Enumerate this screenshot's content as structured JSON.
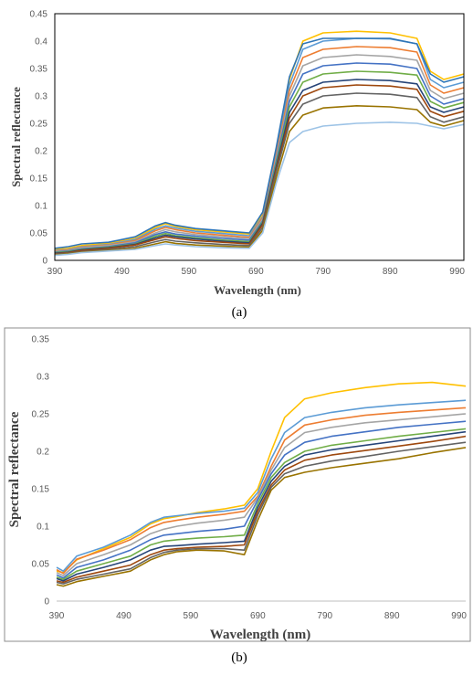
{
  "chart_data": [
    {
      "type": "line",
      "panel": "(a)",
      "xlabel": "Wavelength (nm)",
      "ylabel": "Spectral reflectance",
      "xlim": [
        390,
        1000
      ],
      "ylim": [
        0,
        0.45
      ],
      "xticks": [
        "390",
        "490",
        "590",
        "690",
        "790",
        "890",
        "990"
      ],
      "yticks": [
        "0",
        "0.05",
        "0.1",
        "0.15",
        "0.2",
        "0.25",
        "0.3",
        "0.35",
        "0.4",
        "0.45"
      ],
      "grid": false,
      "legend": "none",
      "x": [
        390,
        410,
        430,
        470,
        510,
        540,
        555,
        570,
        600,
        640,
        680,
        700,
        720,
        740,
        760,
        790,
        840,
        890,
        930,
        950,
        970,
        1000
      ],
      "series": [
        {
          "values": [
            0.02,
            0.022,
            0.027,
            0.031,
            0.04,
            0.06,
            0.067,
            0.062,
            0.056,
            0.052,
            0.048,
            0.085,
            0.2,
            0.33,
            0.4,
            0.415,
            0.418,
            0.415,
            0.405,
            0.345,
            0.33,
            0.34
          ]
        },
        {
          "values": [
            0.018,
            0.02,
            0.025,
            0.029,
            0.038,
            0.057,
            0.063,
            0.059,
            0.053,
            0.049,
            0.045,
            0.08,
            0.195,
            0.32,
            0.385,
            0.4,
            0.405,
            0.404,
            0.395,
            0.33,
            0.315,
            0.325
          ]
        },
        {
          "values": [
            0.017,
            0.019,
            0.024,
            0.028,
            0.036,
            0.054,
            0.06,
            0.056,
            0.05,
            0.046,
            0.042,
            0.078,
            0.19,
            0.31,
            0.37,
            0.385,
            0.39,
            0.388,
            0.38,
            0.32,
            0.305,
            0.315
          ]
        },
        {
          "values": [
            0.016,
            0.018,
            0.023,
            0.027,
            0.034,
            0.05,
            0.056,
            0.052,
            0.047,
            0.043,
            0.04,
            0.075,
            0.185,
            0.3,
            0.355,
            0.37,
            0.375,
            0.372,
            0.365,
            0.31,
            0.295,
            0.305
          ]
        },
        {
          "values": [
            0.015,
            0.017,
            0.021,
            0.025,
            0.032,
            0.047,
            0.052,
            0.048,
            0.044,
            0.04,
            0.037,
            0.072,
            0.18,
            0.29,
            0.34,
            0.355,
            0.36,
            0.358,
            0.35,
            0.3,
            0.285,
            0.295
          ]
        },
        {
          "values": [
            0.014,
            0.016,
            0.02,
            0.024,
            0.03,
            0.044,
            0.049,
            0.045,
            0.041,
            0.037,
            0.034,
            0.07,
            0.175,
            0.28,
            0.325,
            0.34,
            0.345,
            0.343,
            0.338,
            0.29,
            0.278,
            0.288
          ]
        },
        {
          "values": [
            0.013,
            0.015,
            0.019,
            0.023,
            0.029,
            0.041,
            0.046,
            0.043,
            0.039,
            0.035,
            0.032,
            0.068,
            0.17,
            0.27,
            0.31,
            0.325,
            0.33,
            0.328,
            0.322,
            0.28,
            0.27,
            0.28
          ]
        },
        {
          "values": [
            0.012,
            0.014,
            0.018,
            0.022,
            0.028,
            0.038,
            0.043,
            0.04,
            0.036,
            0.033,
            0.03,
            0.065,
            0.165,
            0.26,
            0.3,
            0.315,
            0.32,
            0.318,
            0.312,
            0.272,
            0.262,
            0.272
          ]
        },
        {
          "values": [
            0.011,
            0.013,
            0.016,
            0.02,
            0.025,
            0.034,
            0.038,
            0.035,
            0.032,
            0.029,
            0.027,
            0.06,
            0.16,
            0.25,
            0.285,
            0.3,
            0.305,
            0.303,
            0.297,
            0.262,
            0.252,
            0.262
          ]
        },
        {
          "values": [
            0.01,
            0.012,
            0.015,
            0.018,
            0.022,
            0.03,
            0.034,
            0.031,
            0.028,
            0.026,
            0.024,
            0.055,
            0.15,
            0.235,
            0.265,
            0.278,
            0.282,
            0.28,
            0.275,
            0.252,
            0.245,
            0.255
          ]
        },
        {
          "values": [
            0.009,
            0.011,
            0.014,
            0.017,
            0.02,
            0.027,
            0.03,
            0.028,
            0.025,
            0.023,
            0.022,
            0.05,
            0.14,
            0.215,
            0.235,
            0.245,
            0.25,
            0.252,
            0.25,
            0.245,
            0.24,
            0.248
          ]
        },
        {
          "values": [
            0.022,
            0.025,
            0.03,
            0.033,
            0.043,
            0.063,
            0.069,
            0.064,
            0.058,
            0.054,
            0.05,
            0.088,
            0.205,
            0.335,
            0.395,
            0.405,
            0.405,
            0.405,
            0.395,
            0.34,
            0.325,
            0.335
          ]
        }
      ]
    },
    {
      "type": "line",
      "panel": "(b)",
      "xlabel": "Wavelength (nm)",
      "ylabel": "Spectral reflectance",
      "xlim": [
        390,
        1000
      ],
      "ylim": [
        0,
        0.35
      ],
      "xticks": [
        "390",
        "490",
        "590",
        "690",
        "790",
        "890",
        "990"
      ],
      "yticks": [
        "0",
        "0.05",
        "0.1",
        "0.15",
        "0.2",
        "0.25",
        "0.3",
        "0.35"
      ],
      "grid": false,
      "legend": "none",
      "x": [
        390,
        400,
        420,
        460,
        500,
        530,
        550,
        570,
        600,
        640,
        670,
        690,
        710,
        730,
        760,
        800,
        850,
        900,
        950,
        1000
      ],
      "series": [
        {
          "values": [
            0.04,
            0.038,
            0.055,
            0.07,
            0.085,
            0.103,
            0.11,
            0.113,
            0.118,
            0.123,
            0.128,
            0.15,
            0.2,
            0.245,
            0.27,
            0.278,
            0.285,
            0.29,
            0.292,
            0.287
          ]
        },
        {
          "values": [
            0.045,
            0.04,
            0.06,
            0.072,
            0.088,
            0.105,
            0.112,
            0.114,
            0.117,
            0.12,
            0.124,
            0.145,
            0.19,
            0.225,
            0.245,
            0.252,
            0.258,
            0.262,
            0.265,
            0.268
          ]
        },
        {
          "values": [
            0.042,
            0.037,
            0.056,
            0.068,
            0.082,
            0.098,
            0.105,
            0.108,
            0.112,
            0.116,
            0.12,
            0.14,
            0.18,
            0.215,
            0.235,
            0.242,
            0.248,
            0.252,
            0.255,
            0.258
          ]
        },
        {
          "values": [
            0.038,
            0.034,
            0.05,
            0.062,
            0.075,
            0.09,
            0.096,
            0.1,
            0.104,
            0.108,
            0.112,
            0.138,
            0.175,
            0.205,
            0.225,
            0.232,
            0.238,
            0.242,
            0.246,
            0.25
          ]
        },
        {
          "values": [
            0.035,
            0.031,
            0.045,
            0.055,
            0.068,
            0.082,
            0.088,
            0.09,
            0.093,
            0.096,
            0.1,
            0.135,
            0.17,
            0.195,
            0.212,
            0.22,
            0.226,
            0.232,
            0.236,
            0.24
          ]
        },
        {
          "values": [
            0.032,
            0.029,
            0.04,
            0.05,
            0.06,
            0.075,
            0.08,
            0.082,
            0.084,
            0.086,
            0.088,
            0.13,
            0.165,
            0.185,
            0.2,
            0.208,
            0.214,
            0.22,
            0.225,
            0.23
          ]
        },
        {
          "values": [
            0.03,
            0.027,
            0.036,
            0.045,
            0.055,
            0.068,
            0.073,
            0.074,
            0.076,
            0.078,
            0.08,
            0.125,
            0.16,
            0.18,
            0.195,
            0.202,
            0.208,
            0.214,
            0.22,
            0.226
          ]
        },
        {
          "values": [
            0.027,
            0.025,
            0.032,
            0.04,
            0.048,
            0.062,
            0.068,
            0.07,
            0.072,
            0.073,
            0.075,
            0.12,
            0.155,
            0.175,
            0.188,
            0.195,
            0.201,
            0.207,
            0.213,
            0.22
          ]
        },
        {
          "values": [
            0.025,
            0.023,
            0.029,
            0.036,
            0.043,
            0.058,
            0.065,
            0.068,
            0.07,
            0.07,
            0.068,
            0.115,
            0.152,
            0.17,
            0.18,
            0.187,
            0.193,
            0.2,
            0.206,
            0.212
          ]
        },
        {
          "values": [
            0.022,
            0.02,
            0.026,
            0.033,
            0.04,
            0.055,
            0.062,
            0.066,
            0.068,
            0.067,
            0.062,
            0.108,
            0.148,
            0.165,
            0.172,
            0.178,
            0.184,
            0.19,
            0.198,
            0.205
          ]
        }
      ]
    }
  ],
  "captions": [
    "(a)",
    "(b)"
  ],
  "colors": [
    "#ffc000",
    "#5b9bd5",
    "#ed7d31",
    "#a5a5a5",
    "#4472c4",
    "#70ad47",
    "#264478",
    "#9e480e",
    "#636363",
    "#997300",
    "#9dc3e6",
    "#2e75b6"
  ]
}
